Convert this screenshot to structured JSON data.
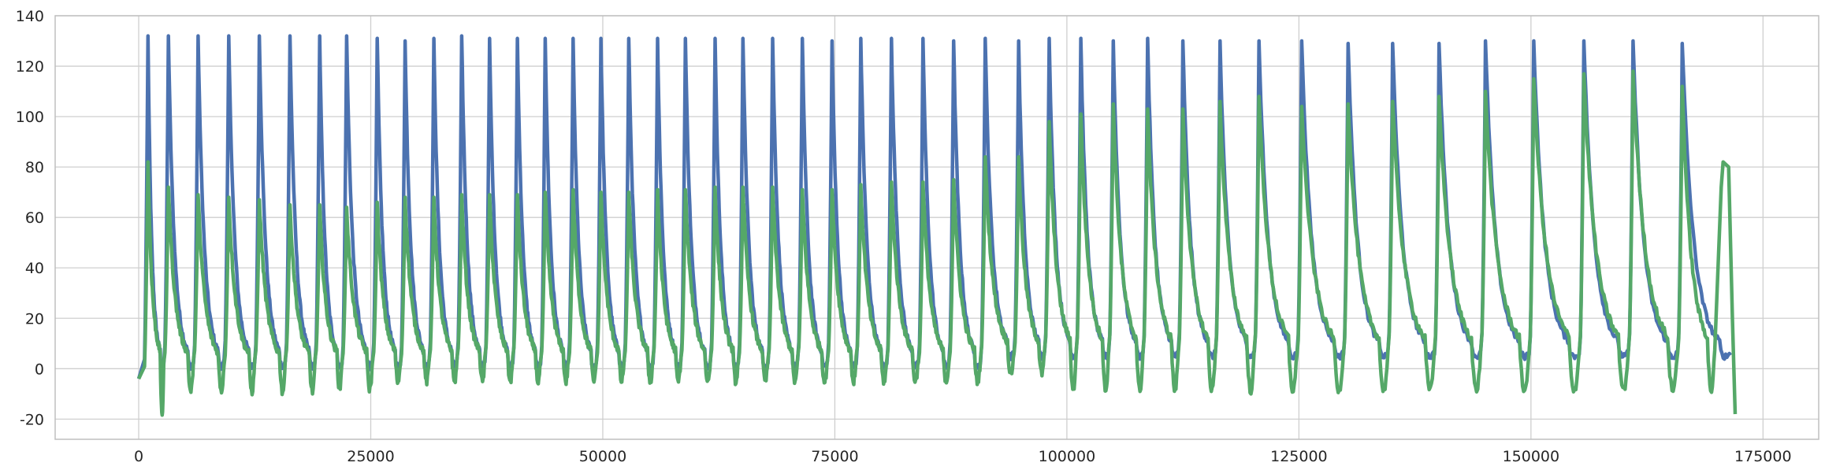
{
  "chart_data": {
    "type": "line",
    "title": "",
    "xlabel": "",
    "ylabel": "",
    "xlim": [
      -9000,
      181000
    ],
    "ylim": [
      -28,
      140
    ],
    "x_ticks": [
      0,
      25000,
      50000,
      75000,
      100000,
      125000,
      150000,
      175000
    ],
    "y_ticks": [
      -20,
      0,
      20,
      40,
      60,
      80,
      100,
      120,
      140
    ],
    "grid": true,
    "legend": "none",
    "colors": {
      "series_1": "#4c72b0",
      "series_2": "#55a868",
      "grid": "#cfcfcf",
      "frame": "#bfbfbf"
    },
    "series": [
      {
        "peaks": [
          [
            1000,
            132
          ],
          [
            3200,
            132
          ],
          [
            6400,
            132
          ],
          [
            9700,
            132
          ],
          [
            13000,
            132
          ],
          [
            16300,
            132
          ],
          [
            19500,
            132
          ],
          [
            22400,
            132
          ],
          [
            25700,
            131
          ],
          [
            28700,
            130
          ],
          [
            31800,
            131
          ],
          [
            34800,
            132
          ],
          [
            37800,
            131
          ],
          [
            40800,
            131
          ],
          [
            43800,
            131
          ],
          [
            46800,
            131
          ],
          [
            49800,
            131
          ],
          [
            52800,
            131
          ],
          [
            55900,
            131
          ],
          [
            58900,
            131
          ],
          [
            62100,
            131
          ],
          [
            65100,
            131
          ],
          [
            68300,
            131
          ],
          [
            71500,
            131
          ],
          [
            74700,
            130
          ],
          [
            77800,
            131
          ],
          [
            81100,
            131
          ],
          [
            84500,
            131
          ],
          [
            87800,
            130
          ],
          [
            91200,
            131
          ],
          [
            94800,
            130
          ],
          [
            98100,
            131
          ],
          [
            101500,
            131
          ],
          [
            105000,
            130
          ],
          [
            108700,
            131
          ],
          [
            112500,
            130
          ],
          [
            116500,
            130
          ],
          [
            120700,
            130
          ],
          [
            125300,
            130
          ],
          [
            130300,
            129
          ],
          [
            135100,
            129
          ],
          [
            140100,
            129
          ],
          [
            145100,
            130
          ],
          [
            150300,
            130
          ],
          [
            155700,
            130
          ],
          [
            161000,
            130
          ],
          [
            166300,
            129
          ]
        ]
      },
      {
        "peaks": [
          [
            1000,
            82
          ],
          [
            3200,
            72
          ],
          [
            6400,
            69
          ],
          [
            9700,
            68
          ],
          [
            13000,
            67
          ],
          [
            16300,
            65
          ],
          [
            19500,
            65
          ],
          [
            22400,
            64
          ],
          [
            25700,
            66
          ],
          [
            28700,
            68
          ],
          [
            31800,
            68
          ],
          [
            34800,
            69
          ],
          [
            37800,
            69
          ],
          [
            40800,
            69
          ],
          [
            43800,
            70
          ],
          [
            46800,
            71
          ],
          [
            49800,
            70
          ],
          [
            52800,
            70
          ],
          [
            55900,
            71
          ],
          [
            58900,
            71
          ],
          [
            62100,
            72
          ],
          [
            65100,
            72
          ],
          [
            68300,
            72
          ],
          [
            71500,
            71
          ],
          [
            74700,
            71
          ],
          [
            77800,
            73
          ],
          [
            81100,
            74
          ],
          [
            84500,
            74
          ],
          [
            87800,
            75
          ],
          [
            91200,
            84
          ],
          [
            94800,
            84
          ],
          [
            98100,
            98
          ],
          [
            101500,
            101
          ],
          [
            105000,
            105
          ],
          [
            108700,
            103
          ],
          [
            112500,
            103
          ],
          [
            116500,
            106
          ],
          [
            120700,
            108
          ],
          [
            125300,
            104
          ],
          [
            130300,
            105
          ],
          [
            135100,
            106
          ],
          [
            140100,
            108
          ],
          [
            145100,
            110
          ],
          [
            150300,
            115
          ],
          [
            155700,
            117
          ],
          [
            161000,
            118
          ],
          [
            166300,
            112
          ]
        ],
        "end_bump": [
          170700,
          82
        ],
        "end_value": [
          172000,
          -18
        ]
      }
    ]
  }
}
